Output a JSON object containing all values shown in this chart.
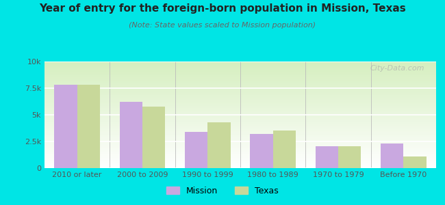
{
  "title": "Year of entry for the foreign-born population in Mission, Texas",
  "subtitle": "(Note: State values scaled to Mission population)",
  "categories": [
    "2010 or later",
    "2000 to 2009",
    "1990 to 1999",
    "1980 to 1989",
    "1970 to 1979",
    "Before 1970"
  ],
  "mission_values": [
    7800,
    6200,
    3400,
    3200,
    2050,
    2300
  ],
  "texas_values": [
    7850,
    5800,
    4300,
    3500,
    2050,
    1100
  ],
  "mission_color": "#c9a8e0",
  "texas_color": "#c8d89a",
  "background_color": "#00e5e5",
  "ylim": [
    0,
    10000
  ],
  "yticks": [
    0,
    2500,
    5000,
    7500,
    10000
  ],
  "ytick_labels": [
    "0",
    "2.5k",
    "5k",
    "7.5k",
    "10k"
  ],
  "bar_width": 0.35,
  "watermark": "City-Data.com",
  "title_fontsize": 11,
  "subtitle_fontsize": 8,
  "tick_fontsize": 8,
  "legend_fontsize": 9
}
